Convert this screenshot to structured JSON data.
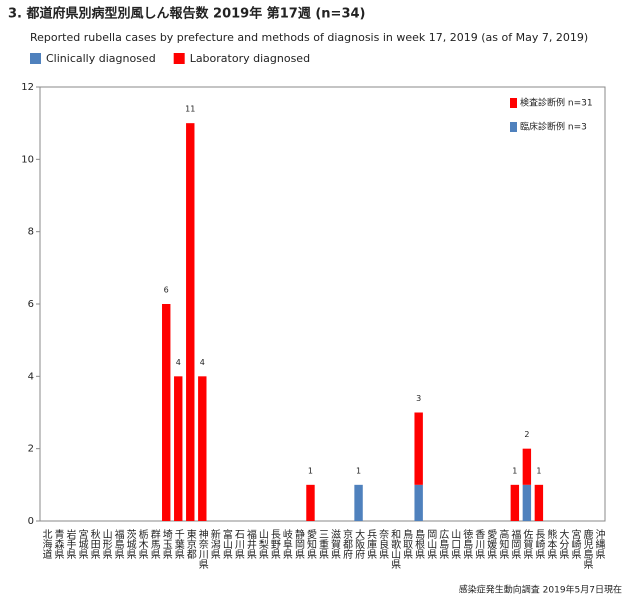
{
  "chart_data": {
    "type": "bar",
    "stacked": true,
    "title": "3. 都道府県別病型別風しん報告数 2019年 第17週 (n=34)",
    "subtitle": "Reported rubella cases by prefecture and methods of diagnosis in week 17, 2019 (as of May 7, 2019)",
    "source": "感染症発生動向調査 2019年5月7日現在",
    "inner_legend": [
      "検査診断例 n=31",
      "臨床診断例 n=3"
    ],
    "categories": [
      "北海道",
      "青森県",
      "岩手県",
      "宮城県",
      "秋田県",
      "山形県",
      "福島県",
      "茨城県",
      "栃木県",
      "群馬県",
      "埼玉県",
      "千葉県",
      "東京都",
      "神奈川県",
      "新潟県",
      "富山県",
      "石川県",
      "福井県",
      "山梨県",
      "長野県",
      "岐阜県",
      "静岡県",
      "愛知県",
      "三重県",
      "滋賀県",
      "京都府",
      "大阪府",
      "兵庫県",
      "奈良県",
      "和歌山県",
      "鳥取県",
      "島根県",
      "岡山県",
      "広島県",
      "山口県",
      "徳島県",
      "香川県",
      "愛媛県",
      "高知県",
      "福岡県",
      "佐賀県",
      "長崎県",
      "熊本県",
      "大分県",
      "宮崎県",
      "鹿児島県",
      "沖縄県"
    ],
    "series": [
      {
        "name": "Clinically diagnosed",
        "color": "#4f81bd",
        "values": [
          0,
          0,
          0,
          0,
          0,
          0,
          0,
          0,
          0,
          0,
          0,
          0,
          0,
          0,
          0,
          0,
          0,
          0,
          0,
          0,
          0,
          0,
          0,
          0,
          0,
          0,
          1,
          0,
          0,
          0,
          0,
          1,
          0,
          0,
          0,
          0,
          0,
          0,
          0,
          0,
          1,
          0,
          0,
          0,
          0,
          0,
          0
        ]
      },
      {
        "name": "Laboratory diagnosed",
        "color": "#ff0000",
        "values": [
          0,
          0,
          0,
          0,
          0,
          0,
          0,
          0,
          0,
          0,
          6,
          4,
          11,
          4,
          0,
          0,
          0,
          0,
          0,
          0,
          0,
          0,
          1,
          0,
          0,
          0,
          0,
          0,
          0,
          0,
          0,
          2,
          0,
          0,
          0,
          0,
          0,
          0,
          0,
          1,
          1,
          1,
          0,
          0,
          0,
          0,
          0
        ]
      }
    ],
    "totals": [
      null,
      null,
      null,
      null,
      null,
      null,
      null,
      null,
      null,
      null,
      6,
      4,
      11,
      4,
      null,
      null,
      null,
      null,
      null,
      null,
      null,
      null,
      1,
      null,
      null,
      null,
      1,
      null,
      null,
      null,
      null,
      3,
      null,
      null,
      null,
      null,
      null,
      null,
      null,
      1,
      2,
      1,
      null,
      null,
      null,
      null,
      null
    ],
    "ylim": [
      0,
      12
    ],
    "yticks": [
      0,
      2,
      4,
      6,
      8,
      10,
      12
    ],
    "grid": false
  }
}
